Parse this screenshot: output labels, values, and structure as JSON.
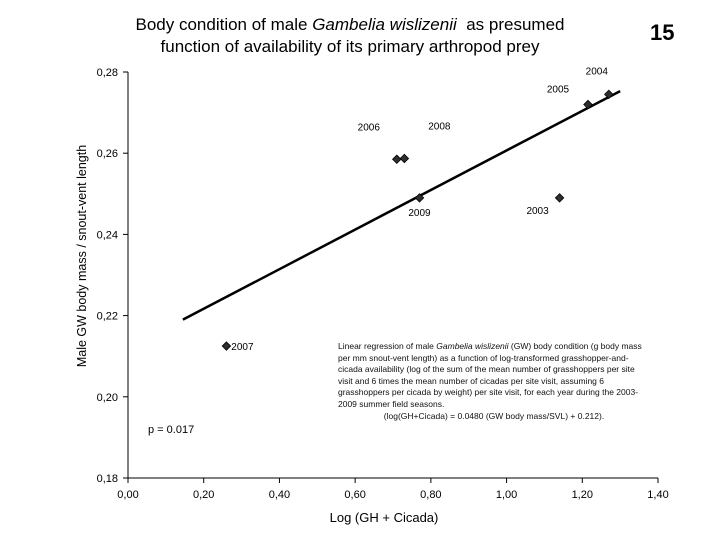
{
  "slide_number": "15",
  "title": {
    "line1_before": "Body condition of male ",
    "line1_species": "Gambelia wislizenii",
    "line1_after": "  as presumed",
    "line2": "function of availability of its primary arthropod prey"
  },
  "annotation_p": "p = 0.017",
  "caption": {
    "before_species": "Linear regression of male ",
    "species": "Gambelia wislizenii",
    "after_species": " (GW) body condition (g body mass per mm snout-vent length) as a function of log-transformed grasshopper-and-cicada availability (log of the sum of the mean number of grasshoppers per site visit and 6 times the mean number of cicadas per site visit, assuming 6 grasshoppers per cicada by weight) per site visit, for each year during the 2003-2009 summer field seasons.",
    "formula": "(log(GH+Cicada) = 0.0480 (GW body mass/SVL) + 0.212)."
  },
  "chart_data": {
    "type": "scatter",
    "xlabel": "Log (GH + Cicada)",
    "ylabel": "Male GW body mass / snout-vent length",
    "xlim": [
      0.0,
      1.4
    ],
    "ylim": [
      0.18,
      0.28
    ],
    "x_ticks": [
      0.0,
      0.2,
      0.4,
      0.6,
      0.8,
      1.0,
      1.2,
      1.4
    ],
    "x_tick_labels": [
      "0,00",
      "0,20",
      "0,40",
      "0,60",
      "0,80",
      "1,00",
      "1,20",
      "1,40"
    ],
    "y_ticks": [
      0.18,
      0.2,
      0.22,
      0.24,
      0.26,
      0.28
    ],
    "y_tick_labels": [
      "0,18",
      "0,20",
      "0,22",
      "0,24",
      "0,26",
      "0,28"
    ],
    "points": [
      {
        "label": "2003",
        "x": 1.14,
        "y": 0.249
      },
      {
        "label": "2004",
        "x": 1.27,
        "y": 0.2745
      },
      {
        "label": "2005",
        "x": 1.215,
        "y": 0.272
      },
      {
        "label": "2006",
        "x": 0.71,
        "y": 0.2585
      },
      {
        "label": "2007",
        "x": 0.26,
        "y": 0.2125
      },
      {
        "label": "2008",
        "x": 0.73,
        "y": 0.2587
      },
      {
        "label": "2009",
        "x": 0.77,
        "y": 0.249
      }
    ],
    "trendline": {
      "x": [
        0.145,
        1.3
      ],
      "y": [
        0.219,
        0.2753
      ]
    },
    "colors": {
      "marker_fill": "#2e2e2e",
      "line": "#000000"
    }
  }
}
